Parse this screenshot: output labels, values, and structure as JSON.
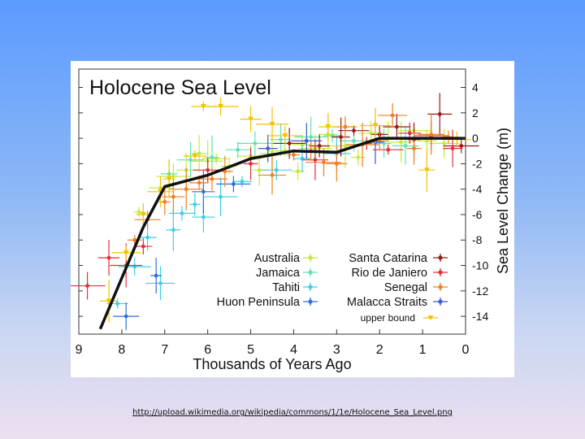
{
  "source_link": "http://upload.wikimedia.org/wikipedia/commons/1/1e/Holocene_Sea_Level.png",
  "chart_data": {
    "type": "scatter",
    "title": "Holocene Sea Level",
    "xlabel": "Thousands of Years Ago",
    "ylabel": "Sea Level Change (m)",
    "xlim": [
      9,
      0
    ],
    "ylim": [
      -15,
      5
    ],
    "xticks": [
      "9",
      "8",
      "7",
      "6",
      "5",
      "4",
      "3",
      "2",
      "1",
      "0"
    ],
    "yticks": [
      "4",
      "2",
      "0",
      "-2",
      "-4",
      "-6",
      "-8",
      "-10",
      "-12",
      "-14"
    ],
    "legend_position": "bottom-right",
    "trend": {
      "name": "",
      "x": [
        8.5,
        7.5,
        7.0,
        6.0,
        5.0,
        4.0,
        3.0,
        2.0,
        1.0,
        0.0
      ],
      "y": [
        -15,
        -7,
        -3.8,
        -2.9,
        -1.6,
        -1.0,
        -1.1,
        0.0,
        0.0,
        0.0
      ]
    },
    "series": [
      {
        "name": "Australia",
        "color": "#c8e83a",
        "points": [
          [
            7.6,
            -5.8
          ],
          [
            7.1,
            -3.9
          ],
          [
            6.8,
            -3.0
          ],
          [
            6.5,
            -2.5
          ],
          [
            6.0,
            -1.8
          ],
          [
            5.5,
            -2.2
          ],
          [
            5.0,
            -1.4
          ],
          [
            4.8,
            -2.5
          ],
          [
            4.5,
            -1.2
          ],
          [
            4.2,
            -1.0
          ],
          [
            3.8,
            -0.5
          ],
          [
            3.5,
            -0.8
          ],
          [
            3.2,
            0.3
          ],
          [
            2.8,
            -0.6
          ],
          [
            2.5,
            -1.5
          ],
          [
            2.2,
            0.4
          ],
          [
            1.8,
            0.0
          ],
          [
            1.5,
            -0.3
          ],
          [
            1.2,
            0.6
          ],
          [
            0.9,
            -0.2
          ],
          [
            0.5,
            -0.4
          ],
          [
            6.2,
            -1.2
          ],
          [
            5.8,
            -1.6
          ],
          [
            3.9,
            -2.6
          ]
        ]
      },
      {
        "name": "Jamaica",
        "color": "#5fe3b0",
        "points": [
          [
            6.9,
            -2.8
          ],
          [
            6.4,
            -1.7
          ],
          [
            5.9,
            -1.5
          ],
          [
            5.3,
            -0.9
          ],
          [
            4.9,
            -0.4
          ],
          [
            4.3,
            -0.1
          ],
          [
            3.6,
            0.1
          ],
          [
            3.1,
            0.2
          ],
          [
            2.6,
            -0.2
          ],
          [
            1.9,
            -0.4
          ],
          [
            1.4,
            -0.6
          ]
        ]
      },
      {
        "name": "Tahiti",
        "color": "#3ecfe6",
        "points": [
          [
            8.1,
            -13.0
          ],
          [
            7.7,
            -10.1
          ],
          [
            7.4,
            -7.8
          ],
          [
            7.1,
            -11.4
          ],
          [
            6.8,
            -7.2
          ],
          [
            6.6,
            -5.9
          ],
          [
            6.3,
            -5.2
          ],
          [
            6.1,
            -6.2
          ],
          [
            5.7,
            -4.6
          ],
          [
            5.2,
            -3.4
          ],
          [
            4.4,
            -2.5
          ],
          [
            3.8,
            -1.6
          ],
          [
            3.0,
            -1.2
          ]
        ]
      },
      {
        "name": "Huon Peninsula",
        "color": "#2f6fd8",
        "points": [
          [
            7.9,
            -14.0
          ],
          [
            7.2,
            -10.8
          ],
          [
            6.1,
            -4.2
          ],
          [
            5.4,
            -3.6
          ]
        ]
      },
      {
        "name": "Santa Catarina",
        "color": "#9b1a1a",
        "points": [
          [
            2.6,
            0.6
          ],
          [
            2.0,
            0.3
          ],
          [
            1.6,
            0.9
          ],
          [
            1.2,
            -0.1
          ],
          [
            0.6,
            1.9
          ],
          [
            0.1,
            -0.6
          ],
          [
            3.4,
            -0.6
          ],
          [
            4.1,
            -0.4
          ],
          [
            2.9,
            0.1
          ]
        ]
      },
      {
        "name": "Rio de Janiero",
        "color": "#e0303a",
        "points": [
          [
            8.8,
            -11.6
          ],
          [
            8.3,
            -9.4
          ],
          [
            7.9,
            -10.0
          ],
          [
            7.5,
            -8.5
          ],
          [
            6.0,
            -2.5
          ],
          [
            5.0,
            -2.0
          ],
          [
            3.5,
            -1.7
          ],
          [
            2.3,
            -0.4
          ],
          [
            1.3,
            0.4
          ],
          [
            0.8,
            0.2
          ],
          [
            0.3,
            -0.8
          ],
          [
            1.8,
            -0.9
          ]
        ]
      },
      {
        "name": "Senegal",
        "color": "#f07f22",
        "points": [
          [
            7.7,
            -8.0
          ],
          [
            7.4,
            -6.4
          ],
          [
            7.0,
            -5.0
          ],
          [
            6.8,
            -4.6
          ],
          [
            6.5,
            -4.0
          ],
          [
            6.2,
            -3.5
          ],
          [
            5.9,
            -3.2
          ],
          [
            5.6,
            -2.6
          ],
          [
            4.5,
            -2.9
          ],
          [
            4.0,
            -1.3
          ],
          [
            3.6,
            -1.0
          ],
          [
            3.3,
            -1.9
          ],
          [
            3.0,
            -2.0
          ],
          [
            2.4,
            -0.5
          ],
          [
            2.0,
            -0.2
          ],
          [
            1.7,
            1.8
          ],
          [
            1.2,
            -0.8
          ],
          [
            0.8,
            0.3
          ],
          [
            0.4,
            0.1
          ],
          [
            2.8,
            0.9
          ]
        ]
      },
      {
        "name": "Malacca Straits",
        "color": "#3b5bd0",
        "points": [
          [
            4.6,
            -0.8
          ],
          [
            3.7,
            -0.2
          ],
          [
            2.1,
            -0.3
          ]
        ]
      },
      {
        "name": "upper bound",
        "color": "#f2c200",
        "points": [
          [
            6.1,
            2.5
          ],
          [
            5.7,
            2.5
          ],
          [
            5.0,
            1.5
          ],
          [
            4.5,
            1.1
          ],
          [
            8.3,
            -12.8
          ],
          [
            7.9,
            -9.0
          ],
          [
            7.5,
            -6.0
          ],
          [
            7.1,
            -4.2
          ],
          [
            6.9,
            -3.2
          ],
          [
            6.3,
            -1.4
          ],
          [
            4.2,
            0.2
          ],
          [
            3.2,
            0.9
          ],
          [
            2.1,
            1.0
          ],
          [
            0.9,
            -2.5
          ],
          [
            0.2,
            -0.1
          ]
        ]
      }
    ]
  }
}
